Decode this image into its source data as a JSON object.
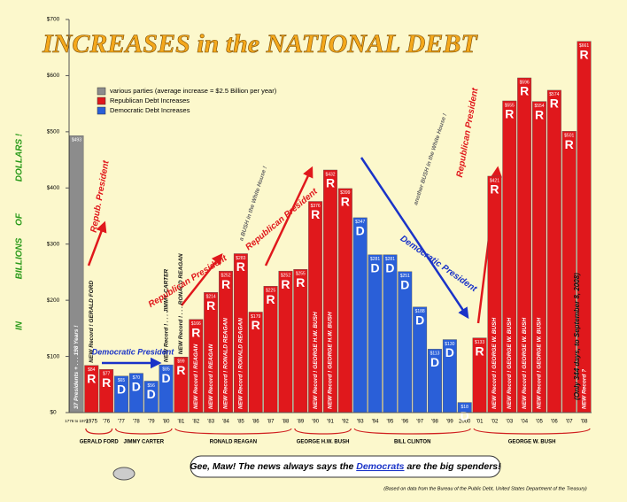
{
  "chart_data": {
    "type": "bar",
    "title": "INCREASES in the NATIONAL DEBT",
    "categories": [
      "1776 to 1974",
      "1975",
      "'76",
      "'77",
      "'78",
      "'79",
      "'80",
      "'81",
      "'82",
      "'83",
      "'84",
      "'85",
      "'86",
      "'87",
      "'88",
      "'89",
      "'90",
      "'91",
      "'92",
      "'93",
      "'94",
      "'95",
      "'96",
      "'97",
      "'98",
      "'99",
      "2000",
      "'01",
      "'02",
      "'03",
      "'04",
      "'05",
      "'06",
      "'07",
      "'08"
    ],
    "values": [
      493,
      84,
      77,
      65,
      70,
      56,
      85,
      99,
      166,
      214,
      252,
      283,
      179,
      225,
      252,
      255,
      376,
      432,
      399,
      347,
      281,
      281,
      251,
      188,
      113,
      130,
      18,
      133,
      421,
      555,
      596,
      554,
      574,
      501,
      661
    ],
    "value_labels": [
      "$493",
      "$84",
      "$77",
      "$65",
      "$70",
      "$56",
      "$85",
      "$99",
      "$166",
      "$214",
      "$252",
      "$283",
      "$179",
      "$225",
      "$252",
      "$255",
      "$376",
      "$432",
      "$399",
      "$347",
      "$281",
      "$281",
      "$251",
      "$188",
      "$113",
      "$130",
      "$18",
      "$133",
      "$421",
      "$555",
      "$596",
      "$554",
      "$574",
      "$501",
      "$661"
    ],
    "colors": [
      "#8c8c8c",
      "#e0181c",
      "#e0181c",
      "#2a5fd8",
      "#2a5fd8",
      "#2a5fd8",
      "#2a5fd8",
      "#e0181c",
      "#e0181c",
      "#e0181c",
      "#e0181c",
      "#e0181c",
      "#e0181c",
      "#e0181c",
      "#e0181c",
      "#e0181c",
      "#e0181c",
      "#e0181c",
      "#e0181c",
      "#2a5fd8",
      "#2a5fd8",
      "#2a5fd8",
      "#2a5fd8",
      "#2a5fd8",
      "#2a5fd8",
      "#2a5fd8",
      "#2a5fd8",
      "#e0181c",
      "#e0181c",
      "#e0181c",
      "#e0181c",
      "#e0181c",
      "#e0181c",
      "#e0181c",
      "#e0181c"
    ],
    "bar_letters": [
      null,
      "R",
      "R",
      "D",
      "D",
      "D",
      "D",
      "R",
      "R",
      "R",
      "R",
      "R",
      "R",
      "R",
      "R",
      "R",
      "R",
      "R",
      "R",
      "D",
      "D",
      "D",
      "D",
      "D",
      "D",
      "D",
      "D",
      "R",
      "R",
      "R",
      "R",
      "R",
      "R",
      "R",
      "R"
    ],
    "bar_notes": [
      "37 Presidents + . . . 198 Years !",
      "NEW Record ! GERALD FORD",
      null,
      null,
      null,
      null,
      "NEW Record ! . . . JIMMY CARTER",
      "NEW Record ! . . . RONALD REAGAN",
      "NEW Record ! REAGAN",
      "NEW Record ! REAGAN",
      "NEW Record ! RONALD REAGAN",
      "NEW Record ! RONALD REAGAN",
      null,
      null,
      null,
      null,
      "NEW Record ! GEORGE H.W. BUSH",
      "NEW Record ! GEORGE H.W. BUSH",
      null,
      null,
      null,
      null,
      null,
      null,
      null,
      null,
      null,
      null,
      "NEW Record ! GEORGE W. BUSH",
      "NEW Record ! GEORGE W. BUSH",
      "NEW Record ! GEORGE W. BUSH",
      "NEW Record ! GEORGE W. BUSH",
      null,
      null,
      "NEW Record ?"
    ],
    "ylim": [
      0,
      700
    ],
    "yticks": [
      {
        "value": 0,
        "label": "$0"
      },
      {
        "value": 100,
        "label": "$100"
      },
      {
        "value": 200,
        "label": "$200"
      },
      {
        "value": 300,
        "label": "$300"
      },
      {
        "value": 400,
        "label": "$400"
      },
      {
        "value": 500,
        "label": "$500"
      },
      {
        "value": 600,
        "label": "$600"
      },
      {
        "value": 700,
        "label": "$700"
      }
    ],
    "y_label_words": [
      "IN",
      "BILLIONS",
      "OF",
      "DOLLARS !"
    ],
    "legend": [
      {
        "label": "various parties (average increase = $2.5 Billion per year)",
        "color": "#8c8c8c"
      },
      {
        "label": "Republican Debt Increases",
        "color": "#e0181c"
      },
      {
        "label": "Democratic Debt Increases",
        "color": "#2a5fd8"
      }
    ],
    "presidents": [
      "GERALD FORD",
      "JIMMY CARTER",
      "RONALD REAGAN",
      "GEORGE H.W. BUSH",
      "BILL CLINTON",
      "GEORGE W. BUSH"
    ],
    "annotations": [
      "Repub. President",
      "Democratic President",
      "Republican President",
      "Republican President",
      "a BUSH in the White House !",
      "Democratic President",
      "another BUSH in the White House !",
      "Republican President",
      "(Only 344 days, to September 8, 2008)"
    ],
    "bubble": {
      "before": "Gee, Maw! The news always says the ",
      "link": "Democrats",
      "after": " are the big spenders!"
    },
    "source": "(Based on data from the Bureau of the Public Debt, United States Department of the Treasury)"
  }
}
